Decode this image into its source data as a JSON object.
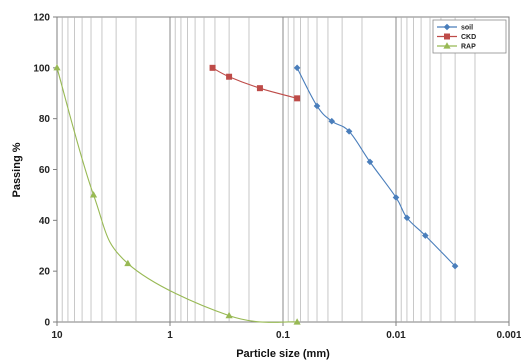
{
  "chart_data": {
    "type": "scatter",
    "title": "",
    "xlabel": "Particle size (mm)",
    "ylabel": "Passing %",
    "xscale": "log",
    "xaxis_reversed": true,
    "xlim": [
      10,
      0.001
    ],
    "ylim": [
      0,
      120
    ],
    "x_ticks": [
      10,
      1,
      0.1,
      0.01,
      0.001
    ],
    "x_tick_labels": [
      "10",
      "1",
      "0.1",
      "0.01",
      "0.001"
    ],
    "y_ticks": [
      0,
      20,
      40,
      60,
      80,
      100,
      120
    ],
    "y_tick_labels": [
      "0",
      "20",
      "40",
      "60",
      "80",
      "100",
      "120"
    ],
    "grid": "vertical-log-minor",
    "legend_position": "top-right",
    "series": [
      {
        "name": "soil",
        "color": "#4a7ebb",
        "marker": "diamond",
        "x": [
          0.075,
          0.05,
          0.037,
          0.026,
          0.017,
          0.01,
          0.008,
          0.0055,
          0.003
        ],
        "y": [
          100,
          85,
          79,
          75,
          63,
          49,
          41,
          34,
          22
        ]
      },
      {
        "name": "CKD",
        "color": "#be4b48",
        "marker": "square",
        "x": [
          0.42,
          0.3,
          0.16,
          0.075
        ],
        "y": [
          100,
          96.5,
          92,
          88
        ]
      },
      {
        "name": "RAP",
        "color": "#98b954",
        "marker": "triangle",
        "x": [
          10,
          4.75,
          2.36,
          0.3,
          0.075
        ],
        "y": [
          100,
          50,
          23,
          2.5,
          0
        ]
      }
    ]
  }
}
